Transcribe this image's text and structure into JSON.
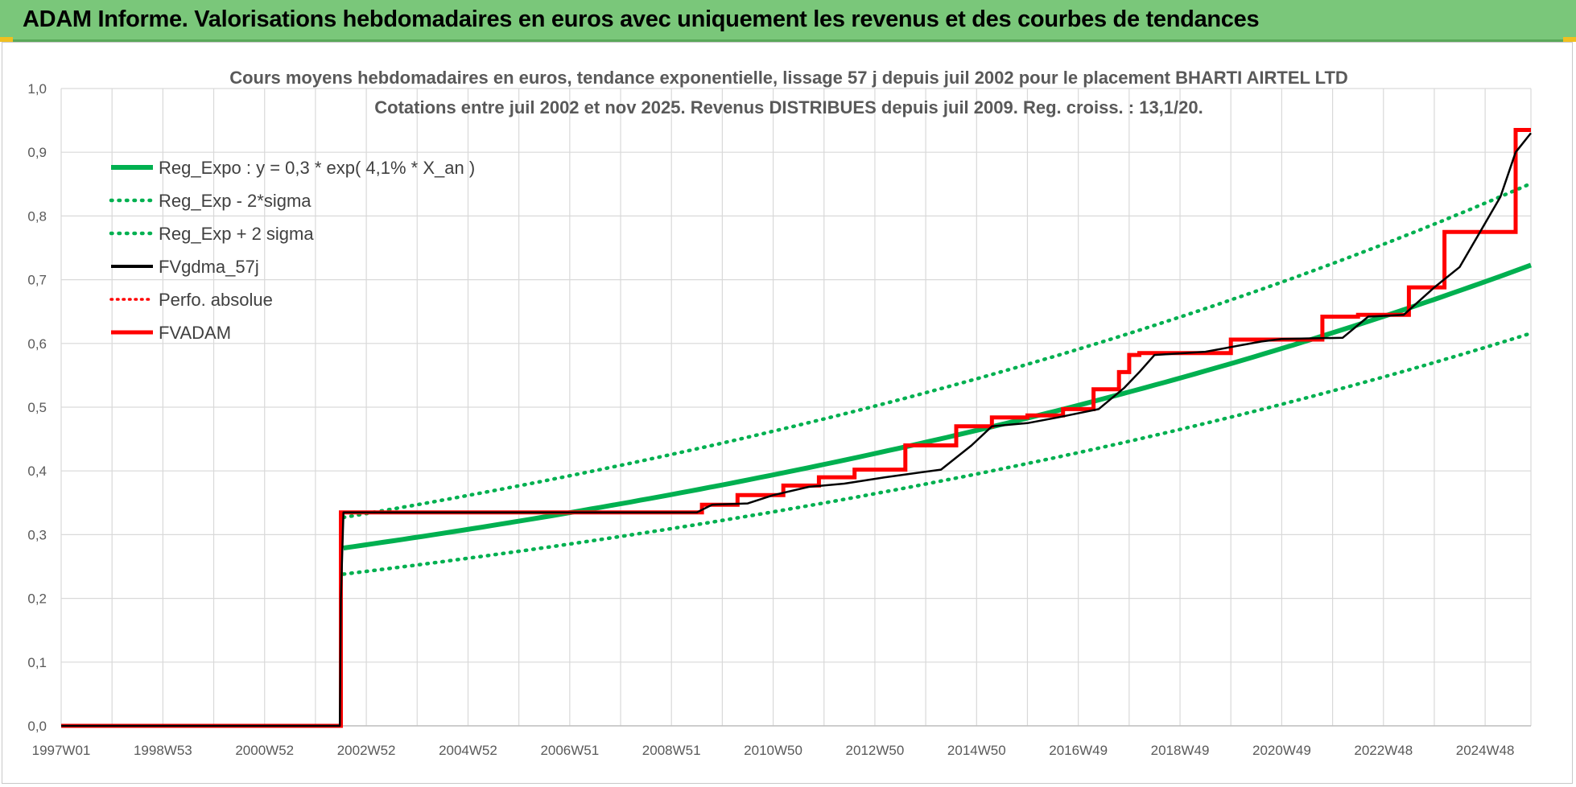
{
  "header": {
    "title": "ADAM Informe. Valorisations hebdomadaires en euros avec uniquement les revenus et des courbes de tendances"
  },
  "chart_data": {
    "type": "line",
    "title": "Cours moyens hebdomadaires en euros, tendance exponentielle, lissage 57 j depuis juil 2002 pour le placement BHARTI AIRTEL LTD",
    "subtitle": "Cotations entre juil 2002 et nov 2025. Revenus DISTRIBUES depuis juil 2009. Reg. croiss. : 13,1/20.",
    "xlabel": "",
    "ylabel": "",
    "ylim": [
      0,
      1.0
    ],
    "xlim": [
      1997.0,
      2025.9
    ],
    "x_tick_labels": [
      "1997W01",
      "1998W53",
      "2000W52",
      "2002W52",
      "2004W52",
      "2006W51",
      "2008W51",
      "2010W50",
      "2012W50",
      "2014W50",
      "2016W49",
      "2018W49",
      "2020W49",
      "2022W48",
      "2024W48"
    ],
    "x_tick_years": [
      1997.0,
      1999.0,
      2001.0,
      2003.0,
      2005.0,
      2007.0,
      2009.0,
      2011.0,
      2013.0,
      2015.0,
      2017.0,
      2019.0,
      2021.0,
      2023.0,
      2025.0
    ],
    "y_tick_labels": [
      "0,0",
      "0,1",
      "0,2",
      "0,3",
      "0,4",
      "0,5",
      "0,6",
      "0,7",
      "0,8",
      "0,9",
      "1,0"
    ],
    "y_ticks": [
      0,
      0.1,
      0.2,
      0.3,
      0.4,
      0.5,
      0.6,
      0.7,
      0.8,
      0.9,
      1.0
    ],
    "grid": true,
    "legend_position": "top-left",
    "series": [
      {
        "name": "Reg_Expo : y = 0,3 * exp( 4,1% *  X_an )",
        "style": "solid",
        "color": "#00b050",
        "x": [
          2002.55,
          2025.9
        ],
        "y": [
          0.279,
          0.723
        ],
        "model": "exponential"
      },
      {
        "name": "Reg_Exp - 2*sigma",
        "style": "dotted",
        "color": "#00b050",
        "x": [
          2002.55,
          2025.9
        ],
        "y": [
          0.238,
          0.616
        ],
        "model": "exponential"
      },
      {
        "name": "Reg_Exp + 2 sigma",
        "style": "dotted",
        "color": "#00b050",
        "x": [
          2002.55,
          2025.9
        ],
        "y": [
          0.327,
          0.851
        ],
        "model": "exponential"
      },
      {
        "name": "FVgdma_57j",
        "style": "solid",
        "color": "#000000",
        "x": [
          1997.0,
          2002.48,
          2002.5,
          2002.55,
          2006.0,
          2009.5,
          2009.8,
          2010.5,
          2011.0,
          2011.7,
          2012.4,
          2013.2,
          2014.3,
          2014.9,
          2015.3,
          2016.0,
          2016.6,
          2017.4,
          2017.9,
          2018.2,
          2018.5,
          2019.5,
          2020.6,
          2021.0,
          2022.2,
          2022.7,
          2023.4,
          2024.0,
          2024.5,
          2024.9,
          2025.3,
          2025.6,
          2025.9
        ],
        "y": [
          0,
          0,
          0.2,
          0.335,
          0.335,
          0.335,
          0.347,
          0.349,
          0.362,
          0.375,
          0.38,
          0.39,
          0.402,
          0.44,
          0.47,
          0.475,
          0.484,
          0.497,
          0.53,
          0.555,
          0.582,
          0.587,
          0.603,
          0.607,
          0.609,
          0.642,
          0.645,
          0.688,
          0.72,
          0.775,
          0.83,
          0.9,
          0.93
        ]
      },
      {
        "name": "Perfo. absolue",
        "style": "dotted",
        "color": "#ff0000",
        "x": [],
        "y": []
      },
      {
        "name": "FVADAM",
        "style": "solid-step",
        "color": "#ff0000",
        "x": [
          1997.0,
          2002.5,
          2009.6,
          2010.3,
          2011.2,
          2011.9,
          2012.6,
          2013.6,
          2014.6,
          2015.3,
          2016.0,
          2016.7,
          2017.3,
          2017.8,
          2018.0,
          2018.2,
          2020.0,
          2021.8,
          2022.5,
          2023.5,
          2024.2,
          2024.9,
          2025.6
        ],
        "y": [
          0,
          0.335,
          0.347,
          0.362,
          0.377,
          0.39,
          0.402,
          0.44,
          0.47,
          0.484,
          0.487,
          0.497,
          0.528,
          0.555,
          0.582,
          0.585,
          0.606,
          0.642,
          0.645,
          0.688,
          0.775,
          0.775,
          0.935
        ]
      }
    ]
  }
}
